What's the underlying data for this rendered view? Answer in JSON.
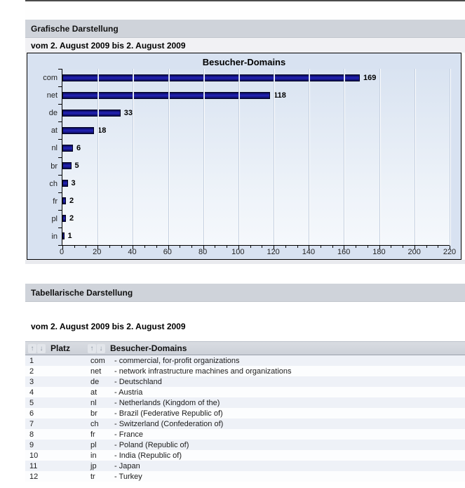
{
  "page": {
    "graph_section_title": "Grafische Darstellung",
    "table_section_title": "Tabellarische Darstellung",
    "date_range_graph": "vom 2. August 2009   bis 2. August 2009",
    "date_range_table": "vom 2. August 2009   bis 2. August 2009"
  },
  "chart_data": {
    "type": "bar",
    "orientation": "horizontal",
    "title": "Besucher-Domains",
    "categories": [
      "com",
      "net",
      "de",
      "at",
      "nl",
      "br",
      "ch",
      "fr",
      "pl",
      "in"
    ],
    "values": [
      169,
      118,
      33,
      18,
      6,
      5,
      3,
      2,
      2,
      1
    ],
    "xlim": [
      0,
      220
    ],
    "x_ticks": [
      0,
      20,
      40,
      60,
      80,
      100,
      120,
      140,
      160,
      180,
      200,
      220
    ],
    "grid": true,
    "legend": "none",
    "bar_color": "#1b1bad",
    "plot_bg_top": "#d9e3f1",
    "plot_bg_bottom": "#f5f8fc"
  },
  "table": {
    "columns": [
      {
        "label": "Platz"
      },
      {
        "label": "Besucher-Domains"
      }
    ],
    "sort_up_icon": "↑",
    "sort_down_icon": "↓",
    "rows": [
      {
        "platz": "1",
        "code": "com",
        "description": "- commercial, for-profit organizations"
      },
      {
        "platz": "2",
        "code": "net",
        "description": "- network infrastructure machines and organizations"
      },
      {
        "platz": "3",
        "code": "de",
        "description": "- Deutschland"
      },
      {
        "platz": "4",
        "code": "at",
        "description": "- Austria"
      },
      {
        "platz": "5",
        "code": "nl",
        "description": "- Netherlands (Kingdom of the)"
      },
      {
        "platz": "6",
        "code": "br",
        "description": "- Brazil (Federative Republic of)"
      },
      {
        "platz": "7",
        "code": "ch",
        "description": "- Switzerland (Confederation of)"
      },
      {
        "platz": "8",
        "code": "fr",
        "description": "- France"
      },
      {
        "platz": "9",
        "code": "pl",
        "description": "- Poland (Republic of)"
      },
      {
        "platz": "10",
        "code": "in",
        "description": "- India (Republic of)"
      },
      {
        "platz": "11",
        "code": "jp",
        "description": "- Japan"
      },
      {
        "platz": "12",
        "code": "tr",
        "description": "- Turkey"
      }
    ]
  }
}
